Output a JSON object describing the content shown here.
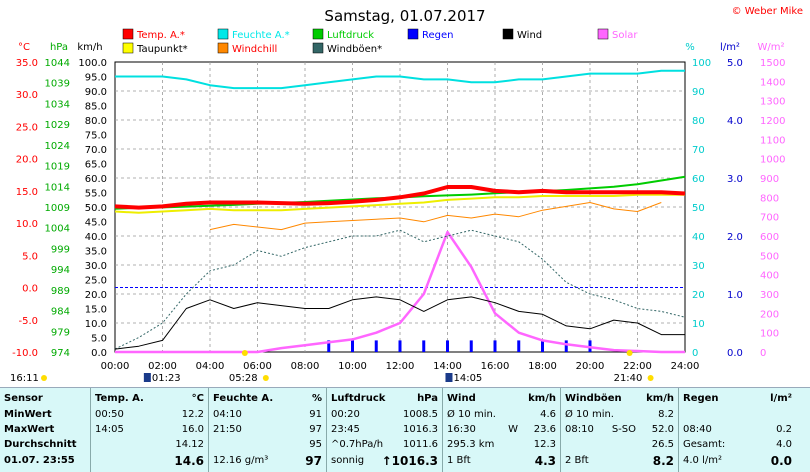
{
  "title": "Samstag, 01.07.2017",
  "copyright": "© Weber Mike",
  "legend": [
    {
      "label": "Temp. A.*",
      "color": "#ff0000"
    },
    {
      "label": "Feuchte A.*",
      "color": "#00e8e8"
    },
    {
      "label": "Luftdruck",
      "color": "#00cc00"
    },
    {
      "label": "Regen",
      "color": "#0000ff"
    },
    {
      "label": "Wind",
      "color": "#000000"
    },
    {
      "label": "Solar",
      "color": "#ff66ff"
    },
    {
      "label": "Taupunkt*",
      "color": "#ffff00"
    },
    {
      "label": "Windchill",
      "color": "#ff8800"
    },
    {
      "label": "Windböen*",
      "color": "#336666"
    }
  ],
  "axes": {
    "temp": {
      "unit": "°C",
      "ticks": [
        "35.0",
        "30.0",
        "25.0",
        "20.0",
        "15.0",
        "10.0",
        "5.0",
        "0.0",
        "-5.0",
        "-10.0"
      ],
      "color": "#ff0000",
      "range": [
        -10,
        35
      ]
    },
    "press": {
      "unit": "hPa",
      "ticks": [
        "1044",
        "1039",
        "1034",
        "1029",
        "1024",
        "1019",
        "1014",
        "1009",
        "1004",
        "999",
        "994",
        "989",
        "984",
        "979",
        "974"
      ],
      "color": "#00aa00",
      "range": [
        974,
        1044
      ]
    },
    "wind": {
      "unit": "km/h",
      "ticks": [
        "100.0",
        "95.0",
        "90.0",
        "85.0",
        "80.0",
        "75.0",
        "70.0",
        "65.0",
        "60.0",
        "55.0",
        "50.0",
        "45.0",
        "40.0",
        "35.0",
        "30.0",
        "25.0",
        "20.0",
        "15.0",
        "10.0",
        "5.0",
        "0.0"
      ],
      "color": "#000000",
      "range": [
        0,
        100
      ]
    },
    "hum": {
      "unit": "%",
      "ticks": [
        "100",
        "90",
        "80",
        "70",
        "60",
        "50",
        "40",
        "30",
        "20",
        "10",
        "0"
      ],
      "color": "#00cccc",
      "range": [
        0,
        100
      ]
    },
    "rain": {
      "unit": "l/m²",
      "ticks": [
        "5.0",
        "4.0",
        "3.0",
        "2.0",
        "1.0",
        "0.0"
      ],
      "color": "#0000cc",
      "range": [
        0,
        5
      ]
    },
    "solar": {
      "unit": "W/m²",
      "ticks": [
        "1500",
        "1400",
        "1300",
        "1200",
        "1100",
        "1000",
        "900",
        "800",
        "700",
        "600",
        "500",
        "400",
        "300",
        "200",
        "100",
        "0"
      ],
      "color": "#ff66ff",
      "range": [
        0,
        1500
      ]
    }
  },
  "xticks": [
    "00:00",
    "02:00",
    "04:00",
    "06:00",
    "08:00",
    "10:00",
    "12:00",
    "14:00",
    "16:00",
    "18:00",
    "20:00",
    "22:00",
    "24:00"
  ],
  "sun": {
    "rise_time": "05:28",
    "set_time": "21:40",
    "rise_left": "16:11",
    "moon_rise": "01:23",
    "moon_set": "14:05"
  },
  "chart_data": {
    "type": "line",
    "x": [
      0,
      1,
      2,
      3,
      4,
      5,
      6,
      7,
      8,
      9,
      10,
      11,
      12,
      13,
      14,
      15,
      16,
      17,
      18,
      19,
      20,
      21,
      22,
      23,
      24
    ],
    "series": [
      {
        "name": "Temp. A.*",
        "axis": "temp",
        "values": [
          12.6,
          12.4,
          12.6,
          13.0,
          13.2,
          13.2,
          13.2,
          13.1,
          13.0,
          13.1,
          13.3,
          13.6,
          14.0,
          14.6,
          15.6,
          15.6,
          15.0,
          14.8,
          15.0,
          14.8,
          14.8,
          14.8,
          14.8,
          14.8,
          14.6
        ]
      },
      {
        "name": "Feuchte A.*",
        "axis": "hum",
        "values": [
          95,
          95,
          95,
          94,
          92,
          91,
          91,
          91,
          92,
          93,
          94,
          95,
          95,
          94,
          94,
          93,
          93,
          94,
          94,
          95,
          96,
          96,
          96,
          97,
          97
        ]
      },
      {
        "name": "Luftdruck",
        "axis": "press",
        "values": [
          1008.6,
          1008.8,
          1008.9,
          1009.1,
          1009.3,
          1009.5,
          1009.8,
          1010.0,
          1010.2,
          1010.5,
          1010.8,
          1011.1,
          1011.3,
          1011.6,
          1011.8,
          1012.0,
          1012.3,
          1012.6,
          1012.8,
          1013.1,
          1013.5,
          1013.9,
          1014.5,
          1015.4,
          1016.3
        ]
      },
      {
        "name": "Taupunkt*",
        "axis": "temp",
        "values": [
          11.8,
          11.6,
          11.8,
          12.0,
          12.2,
          12.0,
          12.0,
          12.0,
          12.2,
          12.4,
          12.6,
          12.8,
          13.0,
          13.2,
          13.6,
          13.8,
          14.0,
          14.0,
          14.2,
          14.2,
          14.2,
          14.2,
          14.4,
          14.4,
          14.4
        ]
      },
      {
        "name": "Windchill",
        "axis": "temp",
        "values": [
          null,
          null,
          null,
          null,
          9.0,
          9.8,
          9.4,
          9.0,
          10.0,
          10.2,
          10.4,
          10.6,
          10.8,
          10.2,
          11.2,
          10.8,
          11.4,
          11.0,
          12.0,
          12.6,
          13.2,
          12.2,
          11.8,
          13.2,
          null
        ]
      },
      {
        "name": "Windböen*",
        "axis": "wind",
        "values": [
          1,
          5,
          10,
          20,
          28,
          30,
          35,
          33,
          36,
          38,
          40,
          40,
          42,
          38,
          40,
          42,
          40,
          38,
          32,
          24,
          20,
          18,
          15,
          14,
          12
        ]
      },
      {
        "name": "Wind",
        "axis": "wind",
        "values": [
          1,
          2,
          4,
          15,
          18,
          15,
          17,
          16,
          15,
          15,
          18,
          19,
          18,
          14,
          18,
          19,
          17,
          14,
          13,
          9,
          8,
          11,
          10,
          6,
          6
        ]
      },
      {
        "name": "Solar",
        "axis": "solar",
        "values": [
          0,
          0,
          0,
          0,
          0,
          0,
          0,
          20,
          35,
          50,
          65,
          100,
          150,
          300,
          620,
          440,
          200,
          100,
          60,
          40,
          25,
          10,
          5,
          0,
          0
        ]
      },
      {
        "name": "Regen",
        "axis": "rain",
        "type": "bar",
        "values": [
          0,
          0,
          0,
          0,
          0,
          0,
          0,
          0,
          0,
          0.2,
          0.2,
          0.2,
          0.2,
          0.2,
          0.2,
          0.2,
          0.2,
          0.2,
          0.2,
          0.2,
          0.2,
          0,
          0,
          0,
          0
        ]
      }
    ]
  },
  "table": {
    "sensor": {
      "header": "Sensor",
      "rows": [
        "MinWert",
        "MaxWert",
        "Durchschnitt",
        "01.07. 23:55"
      ]
    },
    "temp": {
      "header": "Temp. A.",
      "unit": "°C",
      "rows": [
        [
          "00:50",
          "12.2"
        ],
        [
          "14:05",
          "16.0"
        ],
        [
          "",
          "14.12"
        ],
        [
          "",
          "14.6"
        ]
      ]
    },
    "feuchte": {
      "header": "Feuchte A.",
      "unit": "%",
      "rows": [
        [
          "04:10",
          "91"
        ],
        [
          "21:50",
          "97"
        ],
        [
          "",
          "95"
        ],
        [
          "12.16 g/m³",
          "97"
        ]
      ]
    },
    "luftdruck": {
      "header": "Luftdruck",
      "unit": "hPa",
      "rows": [
        [
          "00:20",
          "1008.5"
        ],
        [
          "23:45",
          "1016.3"
        ],
        [
          "^0.7hPa/h",
          "1011.6"
        ],
        [
          "sonnig",
          "↑1016.3"
        ]
      ]
    },
    "wind": {
      "header": "Wind",
      "unit": "km/h",
      "rows": [
        [
          "Ø 10 min.",
          "",
          "4.6"
        ],
        [
          "16:30",
          "W",
          "23.6"
        ],
        [
          "295.3 km",
          "",
          "12.3"
        ],
        [
          "1 Bft",
          "",
          "4.3"
        ]
      ]
    },
    "windboen": {
      "header": "Windböen",
      "unit": "km/h",
      "rows": [
        [
          "Ø 10 min.",
          "",
          "8.2"
        ],
        [
          "08:10",
          "S-SO",
          "52.0"
        ],
        [
          "",
          "",
          "26.5"
        ],
        [
          "2 Bft",
          "",
          "8.2"
        ]
      ]
    },
    "regen": {
      "header": "Regen",
      "unit": "l/m²",
      "rows": [
        [
          "",
          "",
          ""
        ],
        [
          "08:40",
          "",
          "0.2"
        ],
        [
          "Gesamt:",
          "",
          "4.0"
        ],
        [
          "4.0 l/m²",
          "",
          "0.0"
        ]
      ]
    }
  }
}
